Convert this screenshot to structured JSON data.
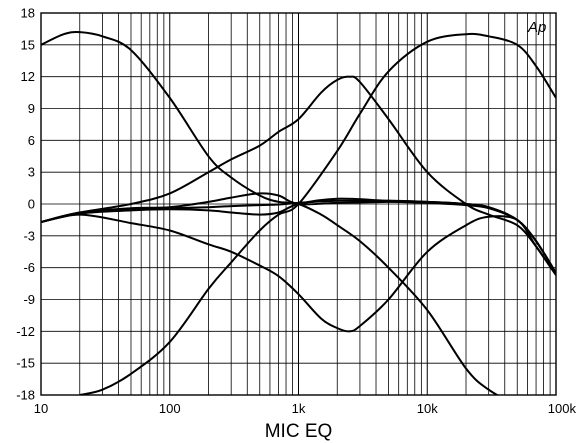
{
  "chart_data": {
    "type": "line",
    "title": "",
    "xlabel": "MIC EQ",
    "ylabel": "",
    "watermark": "Ap",
    "x_scale": "log",
    "xlim": [
      10,
      100000
    ],
    "ylim": [
      -18,
      18
    ],
    "grid": true,
    "legend": "none",
    "line_color": "#000000",
    "x_tick_labels": [
      "10",
      "100",
      "1k",
      "10k",
      "100k"
    ],
    "x_tick_values": [
      10,
      100,
      1000,
      10000,
      100000
    ],
    "y_tick_values": [
      -18,
      -15,
      -12,
      -9,
      -6,
      -3,
      0,
      3,
      6,
      9,
      12,
      15,
      18
    ],
    "y_tick_labels": [
      "-18",
      "-15",
      "-12",
      "-9",
      "-6",
      "-3",
      "0",
      "3",
      "6",
      "9",
      "12",
      "15",
      "18"
    ],
    "series": [
      {
        "x": [
          10,
          15,
          20,
          30,
          50,
          100,
          200,
          300,
          500,
          700,
          1000,
          1500,
          2000,
          3000,
          5000,
          10000,
          20000,
          30000,
          50000
        ],
        "y": [
          15,
          16,
          16.2,
          15.8,
          14.5,
          10,
          4.5,
          2.5,
          0.8,
          0.2,
          0,
          -1,
          -2,
          -3.5,
          -6,
          -10,
          -15.5,
          -17.5,
          -19
        ]
      },
      {
        "x": [
          10,
          20,
          50,
          100,
          200,
          300,
          500,
          700,
          1000,
          2000,
          5000,
          10000,
          20000,
          30000,
          50000,
          70000,
          100000
        ],
        "y": [
          -1.7,
          -0.9,
          -0.5,
          -0.4,
          -0.3,
          -0.2,
          -0.1,
          -0.05,
          0.1,
          0.3,
          0.3,
          0.2,
          0,
          -0.3,
          -1.5,
          -3.5,
          -6.5
        ]
      },
      {
        "x": [
          10,
          20,
          50,
          100,
          200,
          300,
          500,
          700,
          1000,
          2000,
          5000,
          10000,
          20000,
          30000,
          50000,
          70000,
          100000
        ],
        "y": [
          -1.7,
          -0.8,
          -0.4,
          -0.3,
          0.2,
          0.6,
          1,
          0.8,
          0,
          0.1,
          0.2,
          0.1,
          -0.1,
          -0.4,
          -1.5,
          -3.5,
          -6.5
        ]
      },
      {
        "x": [
          10,
          20,
          50,
          100,
          200,
          300,
          500,
          700,
          1000,
          2000,
          5000,
          10000,
          20000,
          30000,
          50000,
          70000,
          100000
        ],
        "y": [
          -1.7,
          -0.9,
          -0.6,
          -0.5,
          -0.6,
          -0.8,
          -1,
          -0.8,
          0,
          0.5,
          0.3,
          0.2,
          0,
          -0.3,
          -1.5,
          -3.5,
          -6.5
        ]
      },
      {
        "x": [
          10,
          20,
          50,
          100,
          200,
          300,
          500,
          700,
          1000,
          1500,
          2000,
          2500,
          3000,
          5000,
          10000,
          20000,
          30000,
          50000,
          70000,
          100000
        ],
        "y": [
          -1.7,
          -0.8,
          0,
          1,
          3,
          4.2,
          5.5,
          6.8,
          8,
          10.5,
          11.7,
          12,
          11.5,
          8,
          3,
          0,
          -1,
          -2,
          -4,
          -6.7
        ]
      },
      {
        "x": [
          10,
          20,
          50,
          100,
          200,
          300,
          500,
          700,
          1000,
          1500,
          2000,
          2500,
          3000,
          5000,
          10000,
          20000,
          30000,
          50000,
          70000,
          100000
        ],
        "y": [
          -1.7,
          -1,
          -1.8,
          -2.5,
          -3.8,
          -4.5,
          -5.8,
          -6.8,
          -8.5,
          -10.8,
          -11.7,
          -12,
          -11.5,
          -9,
          -4.5,
          -2,
          -1.2,
          -1.5,
          -4,
          -6.7
        ]
      },
      {
        "x": [
          20,
          30,
          50,
          100,
          200,
          300,
          500,
          700,
          1000,
          2000,
          3000,
          5000,
          10000,
          20000,
          30000,
          50000,
          70000,
          100000
        ],
        "y": [
          -18,
          -17.5,
          -16,
          -13,
          -8,
          -5.5,
          -2.5,
          -1,
          0,
          5,
          8.5,
          12.5,
          15.3,
          16,
          15.8,
          15,
          13,
          10
        ]
      }
    ]
  }
}
